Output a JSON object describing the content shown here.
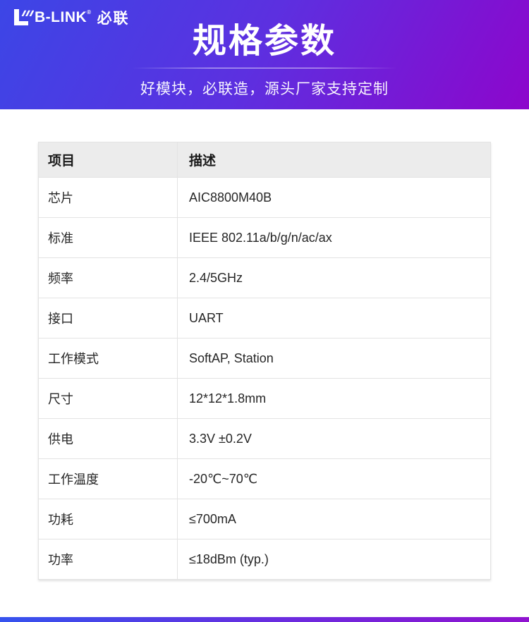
{
  "header": {
    "logo": {
      "icon": "lb-link-stylized-L-with-stripes",
      "brand": "B-LINK",
      "reg": "®",
      "cn": "必联"
    },
    "title": "规格参数",
    "subtitle": "好模块，必联造，源头厂家支持定制"
  },
  "table": {
    "columns": [
      "项目",
      "描述"
    ],
    "rows": [
      {
        "item": "芯片",
        "desc": "AIC8800M40B"
      },
      {
        "item": "标准",
        "desc": "IEEE 802.11a/b/g/n/ac/ax"
      },
      {
        "item": "频率",
        "desc": "2.4/5GHz"
      },
      {
        "item": "接口",
        "desc": "UART"
      },
      {
        "item": "工作模式",
        "desc": "SoftAP, Station"
      },
      {
        "item": "尺寸",
        "desc": "12*12*1.8mm"
      },
      {
        "item": "供电",
        "desc": "3.3V ±0.2V"
      },
      {
        "item": "工作温度",
        "desc": "-20℃~70℃"
      },
      {
        "item": "功耗",
        "desc": "≤700mA"
      },
      {
        "item": "功率",
        "desc": "≤18dBm (typ.)"
      }
    ]
  },
  "colors": {
    "gradient_start": "#3c46e6",
    "gradient_mid": "#5c30e0",
    "gradient_end": "#8d06cc",
    "table_header_bg": "#ececec",
    "table_border": "#e3e3e3",
    "text_dark": "#262626"
  }
}
